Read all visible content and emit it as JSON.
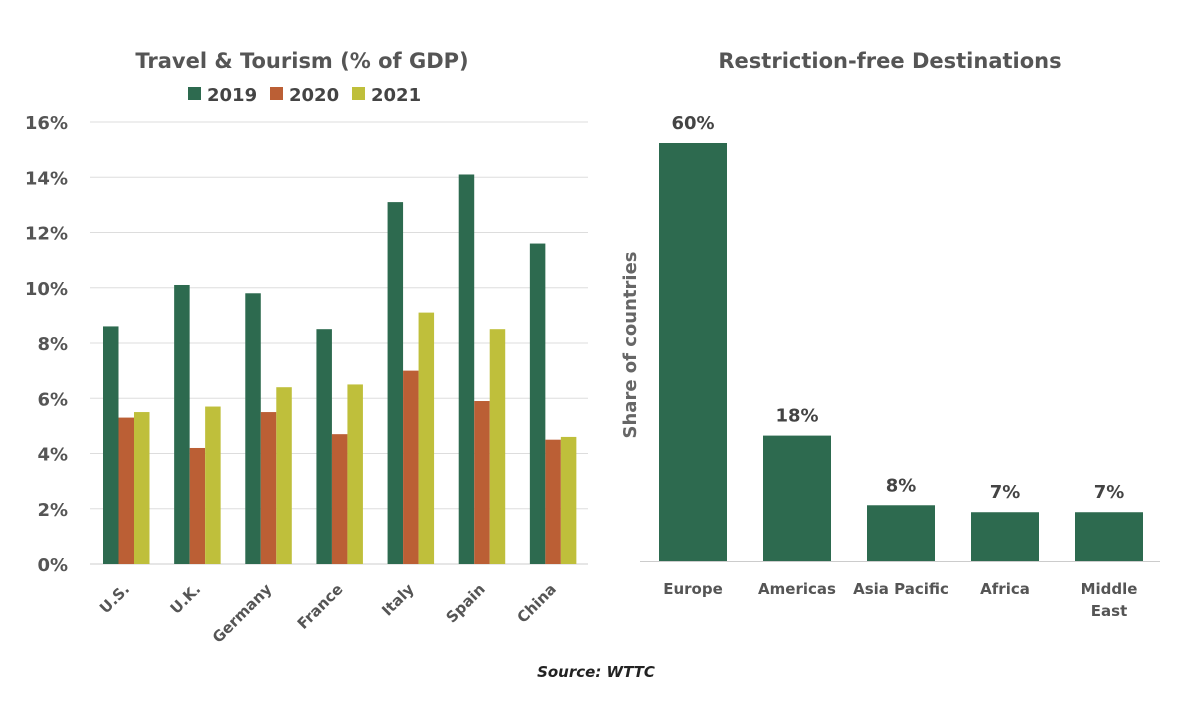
{
  "chart_data": [
    {
      "type": "bar",
      "title": "Travel & Tourism (% of GDP)",
      "categories": [
        "U.S.",
        "U.K.",
        "Germany",
        "France",
        "Italy",
        "Spain",
        "China"
      ],
      "series": [
        {
          "name": "2019",
          "color": "#2d6a4f",
          "values": [
            8.6,
            10.1,
            9.8,
            8.5,
            13.1,
            14.1,
            11.6
          ]
        },
        {
          "name": "2020",
          "color": "#bb5f35",
          "values": [
            5.3,
            4.2,
            5.5,
            4.7,
            7.0,
            5.9,
            4.5
          ]
        },
        {
          "name": "2021",
          "color": "#bfbf3b",
          "values": [
            5.5,
            5.7,
            6.4,
            6.5,
            9.1,
            8.5,
            4.6
          ]
        }
      ],
      "ylim": [
        0,
        16
      ],
      "yticks": [
        "0%",
        "2%",
        "4%",
        "6%",
        "8%",
        "10%",
        "12%",
        "14%",
        "16%"
      ],
      "grid": true,
      "legend": "top"
    },
    {
      "type": "bar",
      "title": "Restriction-free Destinations",
      "ylabel": "Share of countries",
      "categories": [
        "Europe",
        "Americas",
        "Asia Pacific",
        "Africa",
        "Middle East"
      ],
      "values": [
        60,
        18,
        8,
        7,
        7
      ],
      "data_labels": [
        "60%",
        "18%",
        "8%",
        "7%",
        "7%"
      ],
      "color": "#2d6a4f",
      "ylim": [
        0,
        60
      ],
      "grid": false
    }
  ],
  "source": "Source: WTTC"
}
